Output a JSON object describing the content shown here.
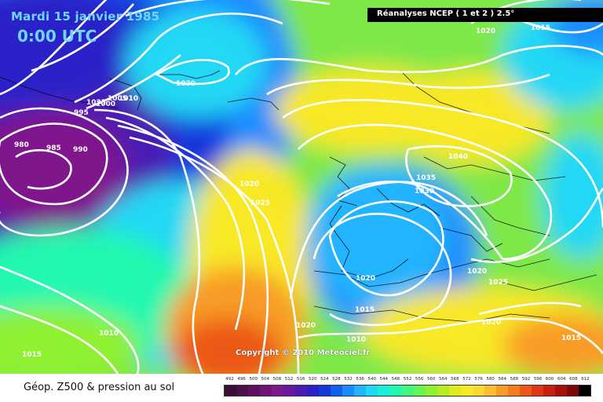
{
  "header": {
    "date": "Mardi 15 janvier 1985",
    "time": "0:00 UTC",
    "source": "Réanalyses NCEP ( 1 et 2 ) 2.5°"
  },
  "copyright": "Copyright © 2010 Meteociel.fr",
  "footer_title": "Géop. Z500 & pression au sol",
  "legend": {
    "values": [
      "492",
      "496",
      "500",
      "504",
      "508",
      "512",
      "516",
      "520",
      "524",
      "528",
      "532",
      "536",
      "540",
      "544",
      "548",
      "552",
      "556",
      "560",
      "564",
      "568",
      "572",
      "576",
      "580",
      "584",
      "588",
      "592",
      "596",
      "600",
      "604",
      "608",
      "612"
    ],
    "colors": [
      "#3a0f36",
      "#4c1048",
      "#5e1060",
      "#701478",
      "#80188c",
      "#6a1aa0",
      "#4a1cb4",
      "#2a20c8",
      "#1438dc",
      "#1060f0",
      "#1a8cff",
      "#22b4ff",
      "#20d8f4",
      "#18eed8",
      "#20f8b0",
      "#40f880",
      "#66f454",
      "#90f030",
      "#b8ec20",
      "#dcec1c",
      "#f8e826",
      "#fcd830",
      "#fcbc30",
      "#f89c28",
      "#f47c20",
      "#ec5818",
      "#e03814",
      "#c82010",
      "#a8100c",
      "#7c0808",
      "#000000"
    ]
  },
  "isobars": [
    "1020",
    "1015",
    "1030",
    "1035",
    "1040",
    "1035",
    "1030",
    "1000",
    "1005",
    "1010",
    "995",
    "990",
    "980",
    "985",
    "1020",
    "1025",
    "1020",
    "1015",
    "1020",
    "1010",
    "1010",
    "1015",
    "1020",
    "1025",
    "1020",
    "1015"
  ],
  "colors": {
    "accent": "#6fd6ff",
    "header_bg": "#000000"
  }
}
